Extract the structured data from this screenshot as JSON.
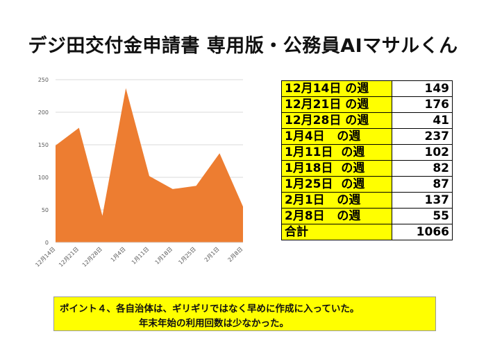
{
  "page": {
    "title": "デジ田交付金申請書 専用版・公務員AIマサルくん"
  },
  "chart_data": {
    "type": "area",
    "categories": [
      "12月14日",
      "12月21日",
      "12月28日",
      "1月4日",
      "1月11日",
      "1月18日",
      "1月25日",
      "2月1日",
      "2月8日"
    ],
    "values": [
      149,
      176,
      41,
      237,
      102,
      82,
      87,
      137,
      55
    ],
    "ylim": [
      0,
      250
    ],
    "yticks": [
      0,
      50,
      100,
      150,
      200,
      250
    ],
    "color": "#ED7D31",
    "grid": true,
    "title": "",
    "xlabel": "",
    "ylabel": ""
  },
  "table": {
    "rows": [
      {
        "label": "12月14日 の週",
        "value": "149"
      },
      {
        "label": "12月21日 の週",
        "value": "176"
      },
      {
        "label": "12月28日 の週",
        "value": "41"
      },
      {
        "label": "1月4日   の週",
        "value": "237"
      },
      {
        "label": "1月11日  の週",
        "value": "102"
      },
      {
        "label": "1月18日  の週",
        "value": "82"
      },
      {
        "label": "1月25日  の週",
        "value": "87"
      },
      {
        "label": "2月1日   の週",
        "value": "137"
      },
      {
        "label": "2月8日   の週",
        "value": "55"
      }
    ],
    "total_label": "合計",
    "total_value": "1066",
    "highlight_color": "#FFFF00"
  },
  "note": {
    "line1": "ポイント４、各自治体は、ギリギリではなく早めに作成に入っていた。",
    "line2": "年末年始の利用回数は少なかった。"
  }
}
